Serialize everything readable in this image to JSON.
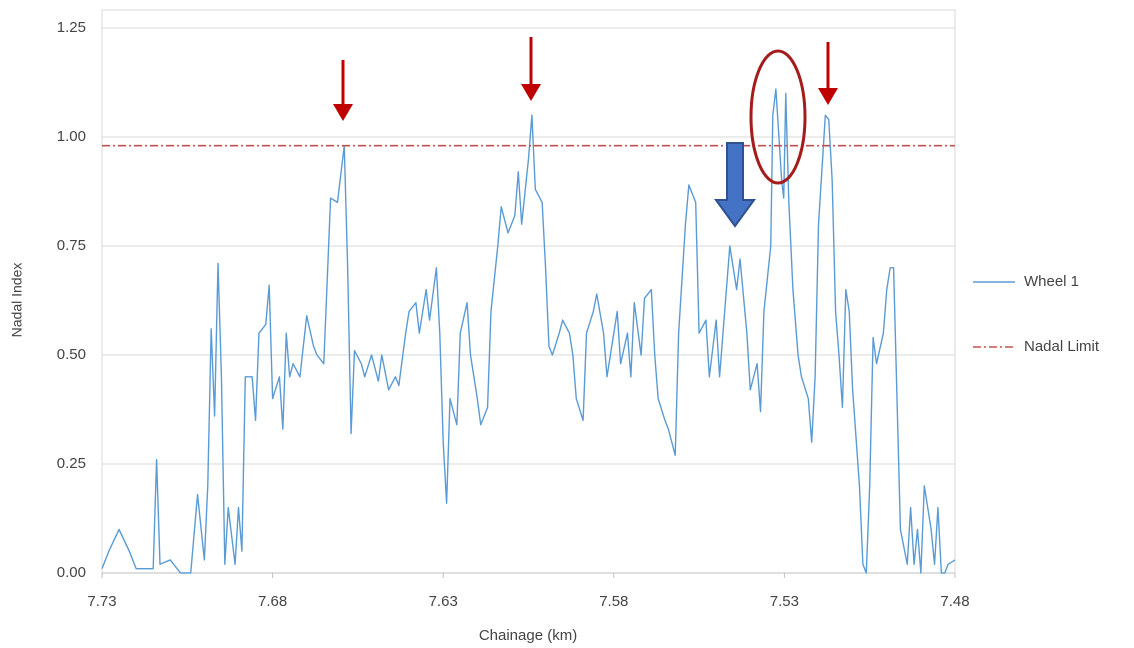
{
  "chart_data": {
    "type": "line",
    "x_label": "Chainage (km)",
    "y_label": "Nadal Index",
    "xlim": [
      7.73,
      7.48
    ],
    "xticks": [
      7.73,
      7.68,
      7.63,
      7.58,
      7.53,
      7.48
    ],
    "ylim": [
      0,
      1.25
    ],
    "yticks": [
      {
        "value": 0,
        "label": "0.00"
      },
      {
        "value": 0.25,
        "label": "0.25"
      },
      {
        "value": 0.5,
        "label": "0.50"
      },
      {
        "value": 0.75,
        "label": "0.75"
      },
      {
        "value": 1,
        "label": "1.00"
      },
      {
        "value": 1.25,
        "label": "1.25"
      }
    ],
    "grid": true,
    "legend": "right",
    "series": [
      {
        "name": "Wheel 1",
        "color": "#5b9bd5",
        "style": "solid",
        "x": [
          7.73,
          7.728,
          7.725,
          7.722,
          7.72,
          7.717,
          7.715,
          7.714,
          7.713,
          7.71,
          7.707,
          7.704,
          7.702,
          7.7,
          7.699,
          7.698,
          7.697,
          7.696,
          7.695,
          7.694,
          7.693,
          7.691,
          7.69,
          7.689,
          7.688,
          7.686,
          7.685,
          7.684,
          7.682,
          7.681,
          7.68,
          7.678,
          7.677,
          7.676,
          7.675,
          7.674,
          7.672,
          7.67,
          7.668,
          7.667,
          7.665,
          7.663,
          7.661,
          7.659,
          7.658,
          7.657,
          7.656,
          7.654,
          7.653,
          7.651,
          7.649,
          7.648,
          7.646,
          7.644,
          7.643,
          7.641,
          7.64,
          7.638,
          7.637,
          7.635,
          7.634,
          7.632,
          7.631,
          7.63,
          7.629,
          7.628,
          7.626,
          7.625,
          7.623,
          7.622,
          7.62,
          7.619,
          7.617,
          7.616,
          7.614,
          7.613,
          7.611,
          7.609,
          7.608,
          7.607,
          7.605,
          7.604,
          7.603,
          7.601,
          7.6,
          7.599,
          7.598,
          7.596,
          7.595,
          7.593,
          7.592,
          7.591,
          7.589,
          7.588,
          7.586,
          7.585,
          7.583,
          7.582,
          7.581,
          7.579,
          7.578,
          7.576,
          7.575,
          7.574,
          7.572,
          7.571,
          7.569,
          7.568,
          7.567,
          7.565,
          7.564,
          7.562,
          7.561,
          7.559,
          7.558,
          7.556,
          7.555,
          7.553,
          7.552,
          7.55,
          7.549,
          7.547,
          7.546,
          7.544,
          7.543,
          7.541,
          7.54,
          7.538,
          7.537,
          7.536,
          7.534,
          7.5334,
          7.5325,
          7.5316,
          7.5308,
          7.5302,
          7.5296,
          7.5287,
          7.5275,
          7.526,
          7.525,
          7.523,
          7.522,
          7.521,
          7.52,
          7.518,
          7.517,
          7.516,
          7.515,
          7.514,
          7.513,
          7.512,
          7.511,
          7.51,
          7.508,
          7.507,
          7.506,
          7.505,
          7.504,
          7.503,
          7.501,
          7.5,
          7.499,
          7.498,
          7.497,
          7.496,
          7.494,
          7.493,
          7.492,
          7.491,
          7.49,
          7.489,
          7.487,
          7.486,
          7.485,
          7.484,
          7.483,
          7.482,
          7.48
        ],
        "values": [
          0.01,
          0.05,
          0.1,
          0.05,
          0.01,
          0.01,
          0.01,
          0.26,
          0.02,
          0.03,
          0.0,
          0.0,
          0.18,
          0.03,
          0.2,
          0.56,
          0.36,
          0.71,
          0.45,
          0.02,
          0.15,
          0.02,
          0.15,
          0.05,
          0.45,
          0.45,
          0.35,
          0.55,
          0.57,
          0.66,
          0.4,
          0.45,
          0.33,
          0.55,
          0.45,
          0.48,
          0.45,
          0.59,
          0.52,
          0.5,
          0.48,
          0.86,
          0.85,
          0.98,
          0.7,
          0.32,
          0.51,
          0.48,
          0.45,
          0.5,
          0.44,
          0.5,
          0.42,
          0.45,
          0.43,
          0.55,
          0.6,
          0.62,
          0.55,
          0.65,
          0.58,
          0.7,
          0.55,
          0.3,
          0.16,
          0.4,
          0.34,
          0.55,
          0.62,
          0.5,
          0.4,
          0.34,
          0.38,
          0.6,
          0.75,
          0.84,
          0.78,
          0.82,
          0.92,
          0.8,
          0.95,
          1.05,
          0.88,
          0.85,
          0.7,
          0.52,
          0.5,
          0.55,
          0.58,
          0.55,
          0.5,
          0.4,
          0.35,
          0.55,
          0.6,
          0.64,
          0.55,
          0.45,
          0.5,
          0.6,
          0.48,
          0.55,
          0.45,
          0.62,
          0.5,
          0.63,
          0.65,
          0.5,
          0.4,
          0.35,
          0.33,
          0.27,
          0.55,
          0.8,
          0.89,
          0.85,
          0.55,
          0.58,
          0.45,
          0.58,
          0.45,
          0.65,
          0.75,
          0.65,
          0.72,
          0.55,
          0.42,
          0.48,
          0.37,
          0.6,
          0.75,
          1.05,
          1.11,
          1.0,
          0.9,
          0.86,
          1.1,
          0.85,
          0.65,
          0.5,
          0.45,
          0.4,
          0.3,
          0.45,
          0.8,
          1.05,
          1.04,
          0.9,
          0.6,
          0.5,
          0.38,
          0.65,
          0.6,
          0.42,
          0.2,
          0.02,
          0.0,
          0.2,
          0.54,
          0.48,
          0.55,
          0.65,
          0.7,
          0.7,
          0.4,
          0.1,
          0.02,
          0.15,
          0.02,
          0.1,
          0.0,
          0.2,
          0.1,
          0.02,
          0.15,
          0.0,
          0.0,
          0.02,
          0.03
        ]
      },
      {
        "name": "Nadal Limit",
        "color": "#c0504d",
        "style": "dashdot",
        "x": [
          7.73,
          7.48
        ],
        "values": [
          0.98,
          0.98
        ]
      }
    ]
  }
}
